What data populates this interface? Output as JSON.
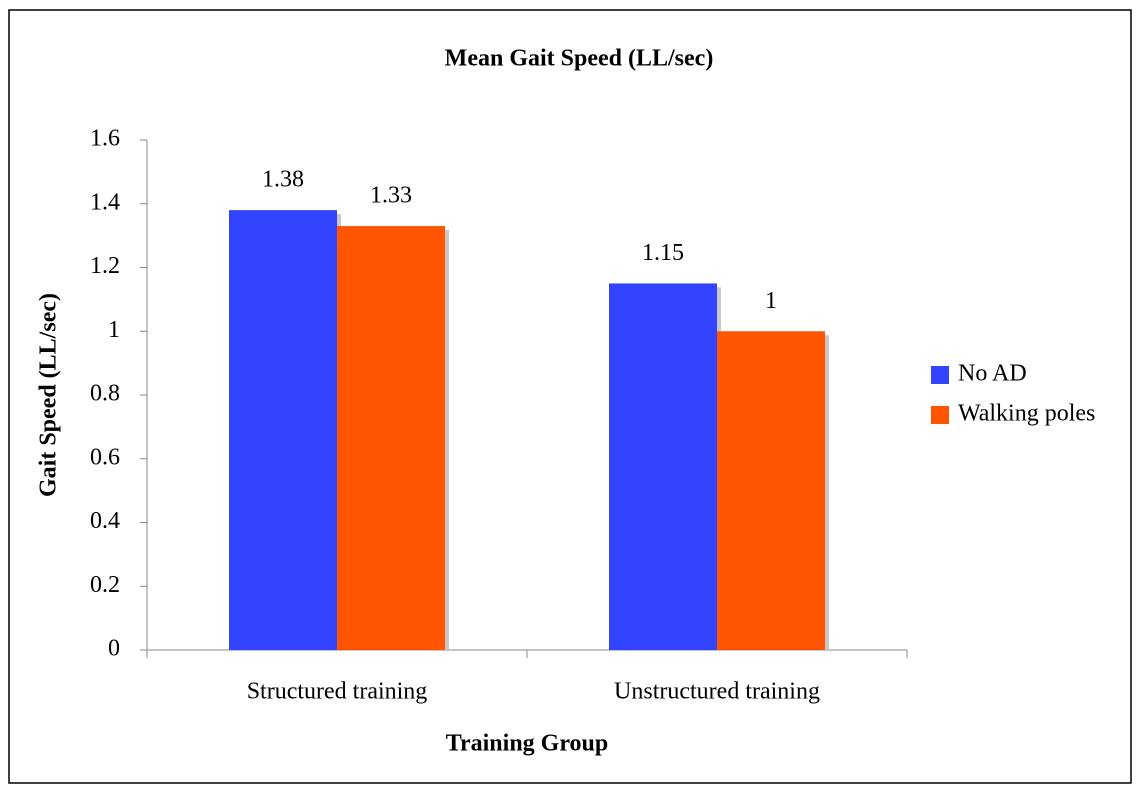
{
  "chart_data": {
    "type": "bar",
    "title": "Mean Gait Speed (LL/sec)",
    "x_label": "Training Group",
    "y_label": "Gait Speed (LL/sec)",
    "categories": [
      "Structured training",
      "Unstructured training"
    ],
    "series": [
      {
        "name": "No AD",
        "color": "#3344ff",
        "values": [
          1.38,
          1.15
        ]
      },
      {
        "name": "Walking poles",
        "color": "#ff5500",
        "values": [
          1.33,
          1
        ]
      }
    ],
    "ylim": [
      0,
      1.6
    ],
    "yticks": [
      0,
      0.2,
      0.4,
      0.6,
      0.8,
      1,
      1.2,
      1.4,
      1.6
    ],
    "legend": "right"
  }
}
